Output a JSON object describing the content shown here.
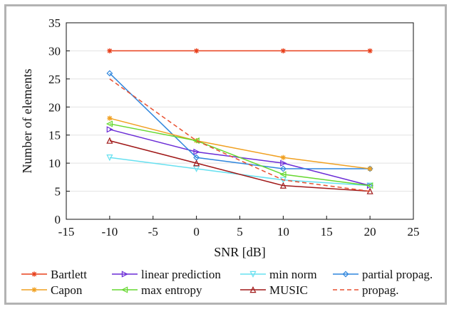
{
  "chart_data": {
    "type": "line",
    "title": "",
    "xlabel": "SNR [dB]",
    "ylabel": "Number of elements",
    "xlim": [
      -15,
      25
    ],
    "ylim": [
      0,
      35
    ],
    "xticks": [
      "-15",
      "-10",
      "-5",
      "0",
      "5",
      "10",
      "15",
      "20",
      "25"
    ],
    "yticks": [
      "0",
      "5",
      "10",
      "15",
      "20",
      "25",
      "30",
      "35"
    ],
    "grid": "horizontal",
    "legend_placement": "bottom",
    "x": [
      -10,
      0,
      10,
      20
    ],
    "series": [
      {
        "name": "Bartlett",
        "values": [
          30,
          30,
          30,
          30
        ],
        "color": "#e8401c",
        "marker": "asterisk",
        "dash": false
      },
      {
        "name": "linear prediction",
        "values": [
          16,
          12,
          10,
          6
        ],
        "color": "#6a2bd6",
        "marker": "triangle-right",
        "dash": false
      },
      {
        "name": "min norm",
        "values": [
          11,
          9,
          7,
          6
        ],
        "color": "#66e0f0",
        "marker": "triangle-down",
        "dash": false
      },
      {
        "name": "partial propag.",
        "values": [
          26,
          11,
          9,
          9
        ],
        "color": "#2f86dd",
        "marker": "diamond",
        "dash": false
      },
      {
        "name": "Capon",
        "values": [
          18,
          14,
          11,
          9
        ],
        "color": "#f0a020",
        "marker": "star",
        "dash": false
      },
      {
        "name": "max entropy",
        "values": [
          17,
          14,
          8,
          6
        ],
        "color": "#66d830",
        "marker": "triangle-left",
        "dash": false
      },
      {
        "name": "MUSIC",
        "values": [
          14,
          10,
          6,
          5
        ],
        "color": "#a01818",
        "marker": "triangle-up",
        "dash": false
      },
      {
        "name": "propag.",
        "values": [
          25,
          14,
          7,
          5
        ],
        "color": "#e85030",
        "marker": "none",
        "dash": true
      }
    ]
  }
}
